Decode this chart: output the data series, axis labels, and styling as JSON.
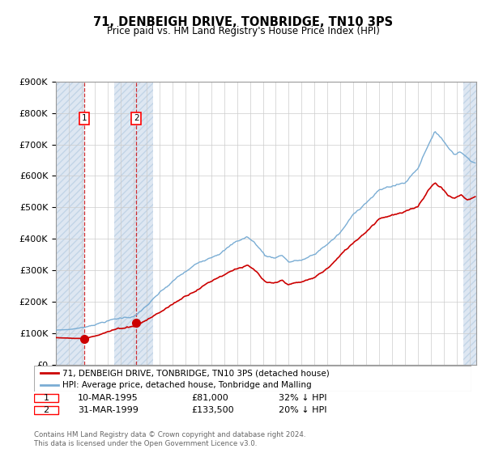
{
  "title": "71, DENBEIGH DRIVE, TONBRIDGE, TN10 3PS",
  "subtitle": "Price paid vs. HM Land Registry's House Price Index (HPI)",
  "legend_line1": "71, DENBEIGH DRIVE, TONBRIDGE, TN10 3PS (detached house)",
  "legend_line2": "HPI: Average price, detached house, Tonbridge and Malling",
  "footnote": "Contains HM Land Registry data © Crown copyright and database right 2024.\nThis data is licensed under the Open Government Licence v3.0.",
  "sale1_date": "10-MAR-1995",
  "sale1_price": 81000,
  "sale1_label": "32% ↓ HPI",
  "sale2_date": "31-MAR-1999",
  "sale2_price": 133500,
  "sale2_label": "20% ↓ HPI",
  "hpi_color": "#7aadd4",
  "price_color": "#cc0000",
  "ylim": [
    0,
    900000
  ],
  "yticks": [
    0,
    100000,
    200000,
    300000,
    400000,
    500000,
    600000,
    700000,
    800000,
    900000
  ],
  "xmin": 1993,
  "xmax": 2025.5,
  "sale1_x": 1995.19,
  "sale2_x": 1999.22,
  "hatch_left_start": 1993,
  "hatch_left_end": 1995.19,
  "hatch_right_start": 1997.5,
  "hatch_right_end": 2000.5
}
